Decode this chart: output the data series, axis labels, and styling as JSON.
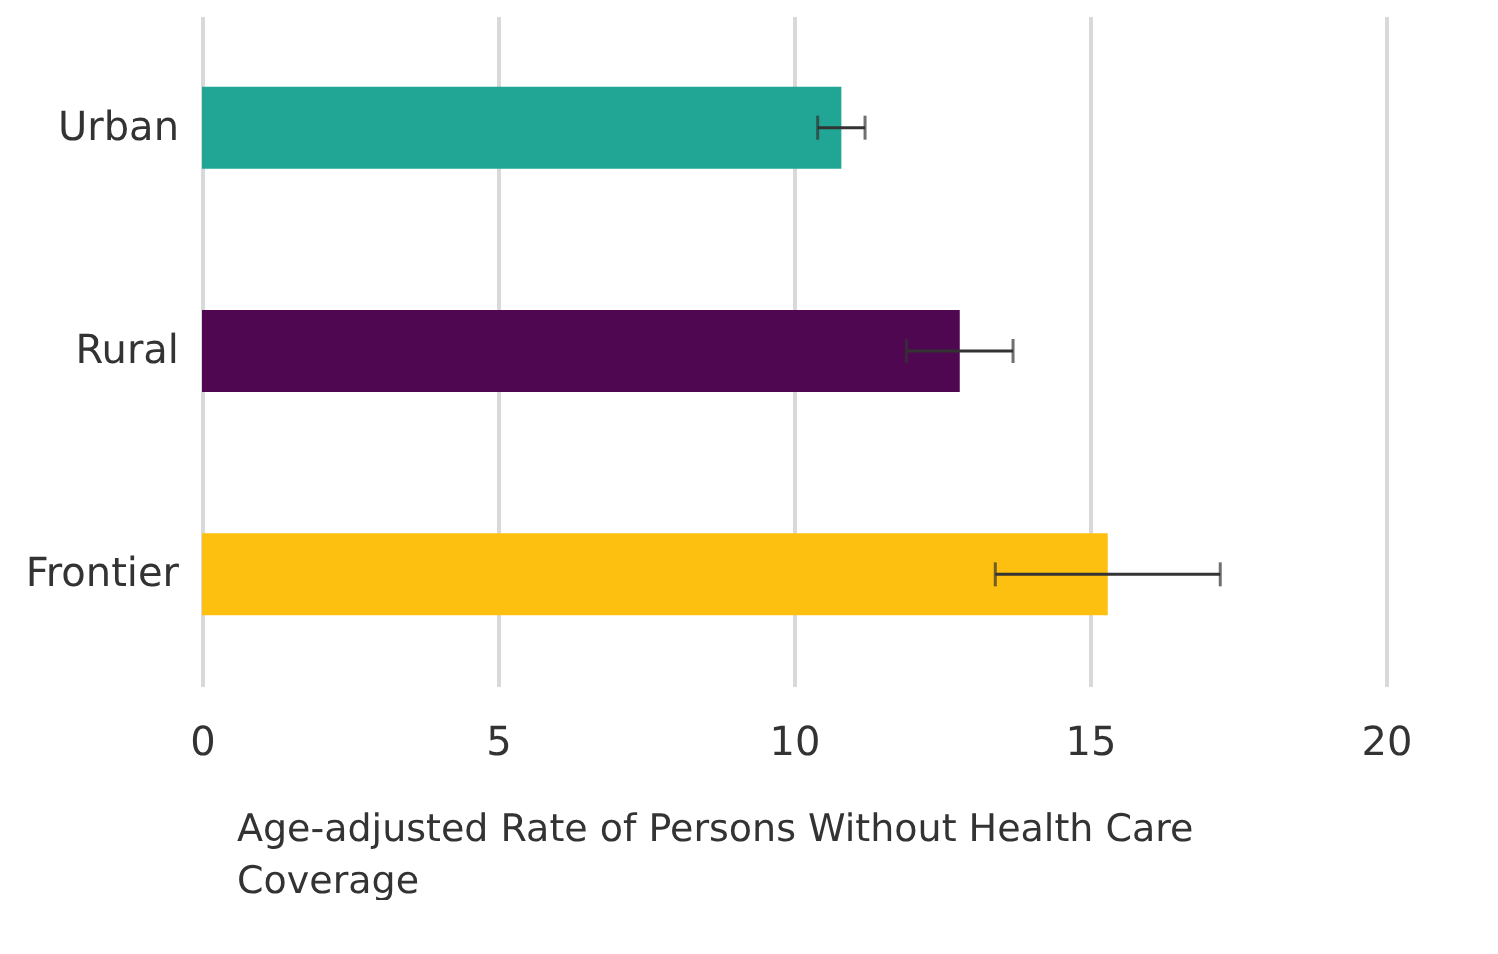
{
  "chart_data": {
    "type": "bar",
    "orientation": "horizontal",
    "categories": [
      "Urban",
      "Rural",
      "Frontier"
    ],
    "values": [
      10.8,
      12.8,
      15.3
    ],
    "colors": [
      "#21a695",
      "#4f0751",
      "#fdc010"
    ],
    "errors": [
      [
        10.4,
        11.2
      ],
      [
        11.9,
        13.7
      ],
      [
        13.4,
        17.2
      ]
    ],
    "xlabel": "Age-adjusted Rate of Persons Without Health Care Coverage",
    "xlim": [
      0,
      20
    ],
    "xticks": [
      0,
      5,
      10,
      15,
      20
    ],
    "grid": "x"
  }
}
